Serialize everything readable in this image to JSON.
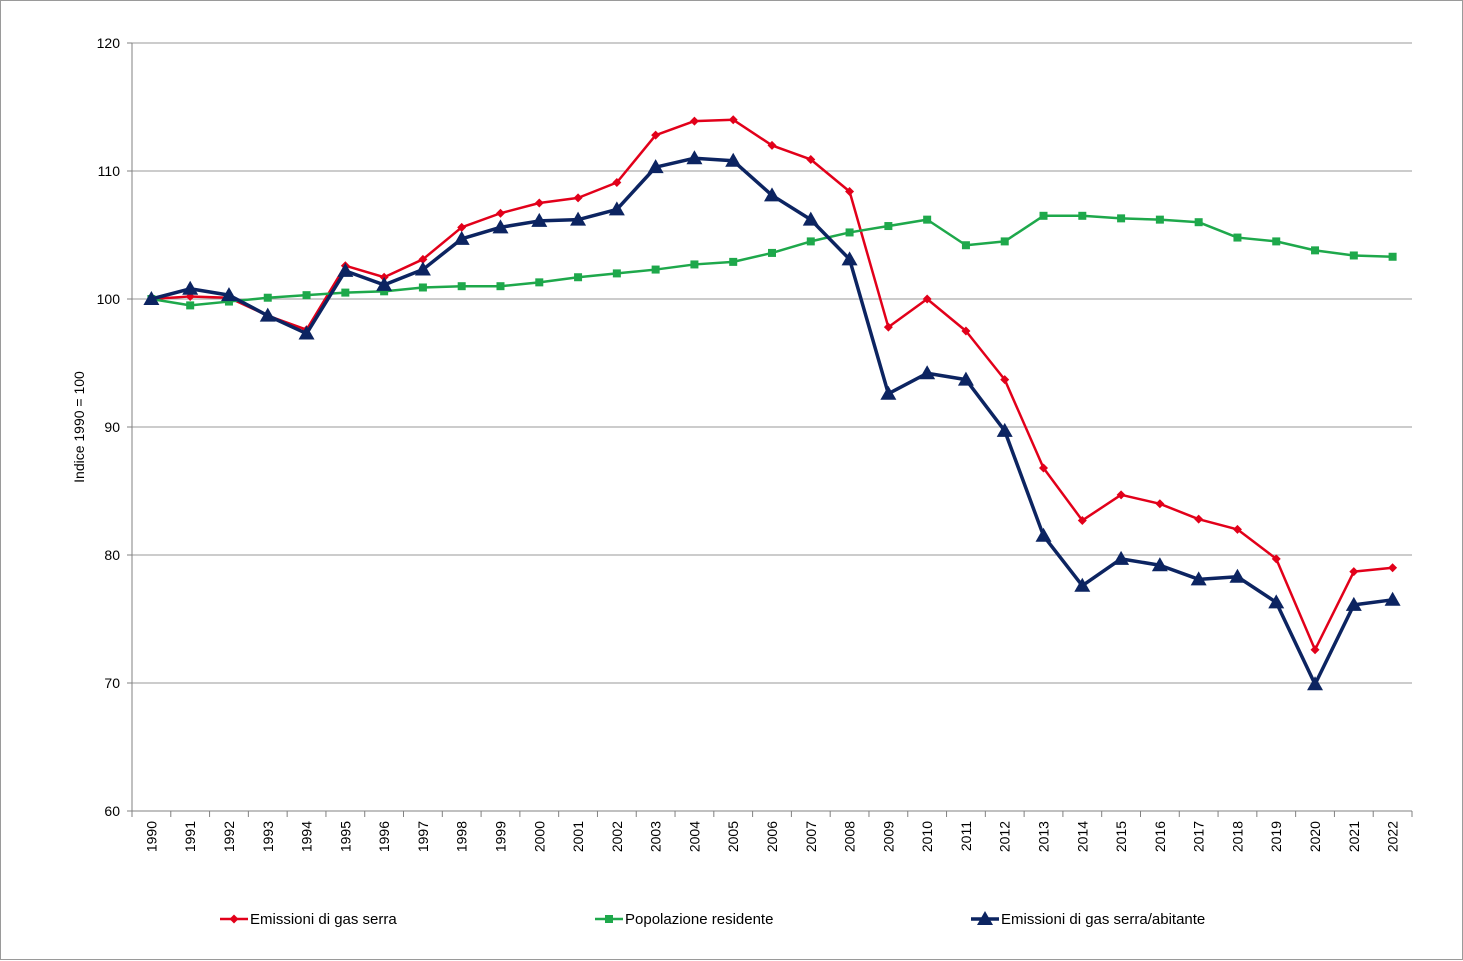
{
  "chart_data": {
    "type": "line",
    "title": "",
    "xlabel": "",
    "ylabel": "Indice 1990 = 100",
    "ylim": [
      60,
      120
    ],
    "ytick_step": 10,
    "grid": "horizontal",
    "legend_position": "bottom",
    "categories": [
      "1990",
      "1991",
      "1992",
      "1993",
      "1994",
      "1995",
      "1996",
      "1997",
      "1998",
      "1999",
      "2000",
      "2001",
      "2002",
      "2003",
      "2004",
      "2005",
      "2006",
      "2007",
      "2008",
      "2009",
      "2010",
      "2011",
      "2012",
      "2013",
      "2014",
      "2015",
      "2016",
      "2017",
      "2018",
      "2019",
      "2020",
      "2021",
      "2022"
    ],
    "series": [
      {
        "name": "Emissioni di gas serra",
        "color": "#e2001a",
        "marker": "diamond",
        "values": [
          100.0,
          100.2,
          100.1,
          98.7,
          97.6,
          102.6,
          101.7,
          103.1,
          105.6,
          106.7,
          107.5,
          107.9,
          109.1,
          112.8,
          113.9,
          114.0,
          112.0,
          110.9,
          108.4,
          97.8,
          100.0,
          97.5,
          93.7,
          86.8,
          82.7,
          84.7,
          84.0,
          82.8,
          82.0,
          79.7,
          72.6,
          78.7,
          79.0
        ]
      },
      {
        "name": "Popolazione residente",
        "color": "#1ea84b",
        "marker": "square",
        "values": [
          100.0,
          99.5,
          99.8,
          100.1,
          100.3,
          100.5,
          100.6,
          100.9,
          101.0,
          101.0,
          101.3,
          101.7,
          102.0,
          102.3,
          102.7,
          102.9,
          103.6,
          104.5,
          105.2,
          105.7,
          106.2,
          104.2,
          104.5,
          106.5,
          106.5,
          106.3,
          106.2,
          106.0,
          104.8,
          104.5,
          103.8,
          103.4,
          103.3
        ]
      },
      {
        "name": "Emissioni di gas serra/abitante",
        "color": "#0c2461",
        "marker": "triangle",
        "values": [
          100.0,
          100.8,
          100.3,
          98.7,
          97.3,
          102.2,
          101.1,
          102.3,
          104.7,
          105.6,
          106.1,
          106.2,
          107.0,
          110.3,
          111.0,
          110.8,
          108.1,
          106.2,
          103.1,
          92.6,
          94.2,
          93.7,
          89.7,
          81.5,
          77.6,
          79.7,
          79.2,
          78.1,
          78.3,
          76.3,
          69.9,
          76.1,
          76.5
        ]
      }
    ]
  }
}
